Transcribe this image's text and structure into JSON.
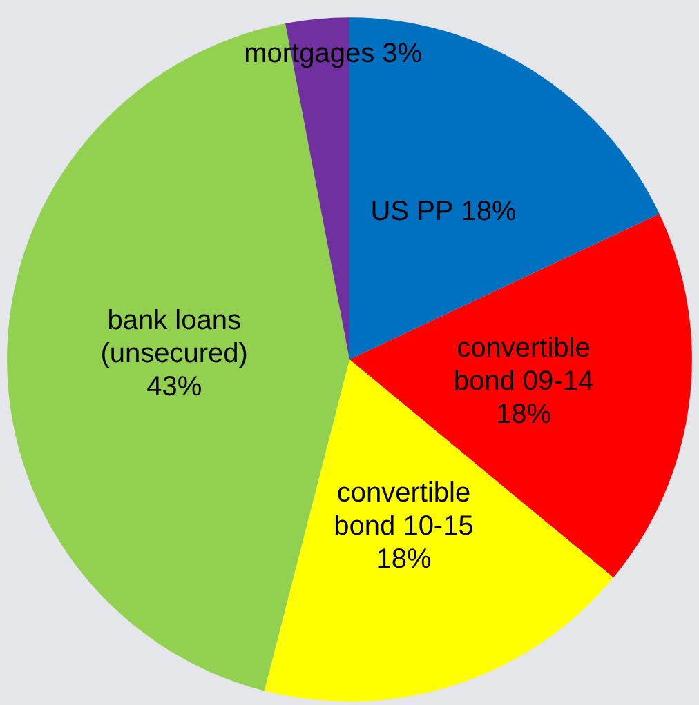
{
  "chart_data": {
    "type": "pie",
    "categories": [
      "US PP",
      "convertible bond 09-14",
      "convertible bond 10-15",
      "bank loans (unsecured)",
      "mortgages"
    ],
    "values": [
      18,
      18,
      18,
      43,
      3
    ],
    "colors": [
      "#0070c0",
      "#ff0000",
      "#ffff00",
      "#92d050",
      "#7030a0"
    ],
    "value_labels": [
      "18%",
      "18%",
      "18%",
      "43%",
      "3%"
    ],
    "legend": false
  }
}
